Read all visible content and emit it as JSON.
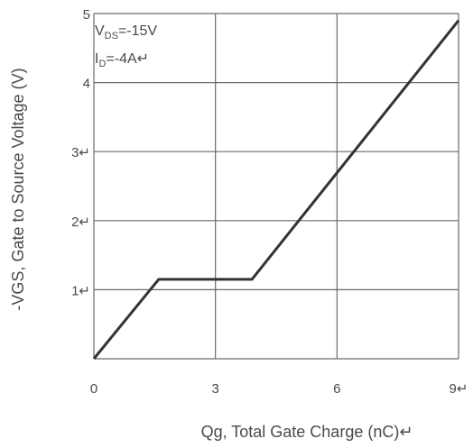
{
  "chart_data": {
    "type": "line",
    "title": "",
    "xlabel": "Qg, Total Gate Charge (nC)↵",
    "ylabel": "-VGS, Gate to Source Voltage (V)",
    "xlim": [
      0,
      9
    ],
    "ylim": [
      0,
      5
    ],
    "x_ticks": [
      "0",
      "3",
      "6",
      "9↵"
    ],
    "y_ticks": [
      "1↵",
      "2↵",
      "3↵",
      "4",
      "5"
    ],
    "y_gridlines": [
      1,
      2,
      3,
      4,
      5
    ],
    "x_gridlines": [
      0,
      3,
      6,
      9
    ],
    "grid": true,
    "annotations": {
      "vds_main": "V",
      "vds_sub": "DS",
      "vds_rest": "=-15V",
      "id_main": "I",
      "id_sub": "D",
      "id_rest": "=-4A↵"
    },
    "series": [
      {
        "color": "#333333",
        "x": [
          0.0,
          1.6,
          3.9,
          9.0
        ],
        "y": [
          0.0,
          1.15,
          1.15,
          4.9
        ]
      }
    ]
  },
  "colors": {
    "grid": "#6b6b6b",
    "axis_text": "#4a4a4a",
    "line": "#333333"
  }
}
